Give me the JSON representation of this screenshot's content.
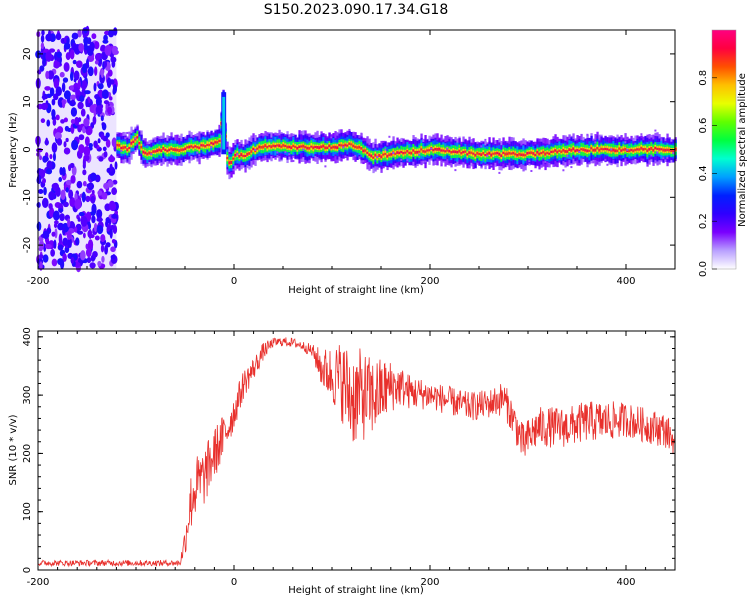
{
  "figure": {
    "title": "S150.2023.090.17.34.G18"
  },
  "chart_data": [
    {
      "type": "heatmap",
      "xlabel": "Height of straight line (km)",
      "ylabel": "Frequency (Hz)",
      "xlim": [
        -200,
        450
      ],
      "ylim": [
        -25,
        25
      ],
      "xticks": [
        -200,
        0,
        200,
        400
      ],
      "yticks": [
        -20,
        -10,
        0,
        10,
        20
      ],
      "grid": false,
      "colorbar": {
        "label": "Normalized spectral amplitude",
        "range": [
          0,
          1
        ],
        "ticks": [
          "0.0",
          "0.2",
          "0.4",
          "0.6",
          "0.8"
        ],
        "colormap": [
          "#ffffff",
          "#b9a0ff",
          "#7a00ff",
          "#2f00ff",
          "#0020ff",
          "#00a0ff",
          "#00ffd0",
          "#00ff40",
          "#60ff00",
          "#e8ff00",
          "#ffc000",
          "#ff5000",
          "#ff0040",
          "#ff0080"
        ]
      },
      "noise_region_x": [
        -200,
        -120
      ],
      "ridge": {
        "x": [
          -120,
          -110,
          -100,
          -95,
          -90,
          -80,
          -60,
          -40,
          -25,
          -15,
          -12,
          -10,
          -8,
          -5,
          0,
          10,
          20,
          40,
          60,
          80,
          100,
          120,
          130,
          140,
          160,
          200,
          250,
          300,
          350,
          400,
          450
        ],
        "freq": [
          1,
          0,
          2.5,
          0,
          -1,
          0,
          0,
          0.5,
          1,
          2,
          11,
          3,
          -2,
          -3,
          -1,
          -1.5,
          0,
          1,
          0.5,
          0.5,
          0.5,
          1,
          0,
          -1.5,
          -1,
          0,
          -1,
          -1,
          0,
          0,
          0
        ],
        "peak_amplitude": 0.9
      }
    },
    {
      "type": "line",
      "xlabel": "Height of straight line (km)",
      "ylabel": "SNR (10 * v/v)",
      "xlim": [
        -200,
        450
      ],
      "ylim": [
        0,
        410
      ],
      "xticks": [
        -200,
        0,
        200,
        400
      ],
      "yticks": [
        0,
        100,
        200,
        300,
        400
      ],
      "grid": false,
      "series": [
        {
          "color": "#e8302c",
          "x": [
            -200,
            -150,
            -100,
            -55,
            -50,
            -45,
            -40,
            -30,
            -20,
            -10,
            0,
            10,
            20,
            30,
            40,
            50,
            60,
            70,
            80,
            90,
            100,
            110,
            120,
            130,
            140,
            150,
            160,
            170,
            180,
            200,
            220,
            240,
            260,
            275,
            285,
            295,
            300,
            310,
            320,
            340,
            360,
            380,
            400,
            420,
            440,
            450
          ],
          "y": [
            12,
            12,
            12,
            12,
            50,
            110,
            140,
            160,
            200,
            230,
            270,
            320,
            345,
            375,
            390,
            392,
            390,
            385,
            375,
            345,
            335,
            325,
            295,
            300,
            295,
            305,
            315,
            315,
            305,
            300,
            290,
            280,
            285,
            295,
            260,
            215,
            225,
            245,
            245,
            245,
            255,
            255,
            258,
            248,
            240,
            220
          ],
          "noise_amplitude": [
            5,
            5,
            5,
            5,
            25,
            50,
            55,
            50,
            45,
            40,
            30,
            25,
            20,
            15,
            8,
            8,
            8,
            8,
            12,
            35,
            50,
            70,
            85,
            80,
            70,
            60,
            45,
            35,
            30,
            25,
            25,
            25,
            25,
            30,
            30,
            35,
            35,
            35,
            35,
            35,
            35,
            35,
            30,
            30,
            30,
            25
          ]
        }
      ]
    }
  ]
}
